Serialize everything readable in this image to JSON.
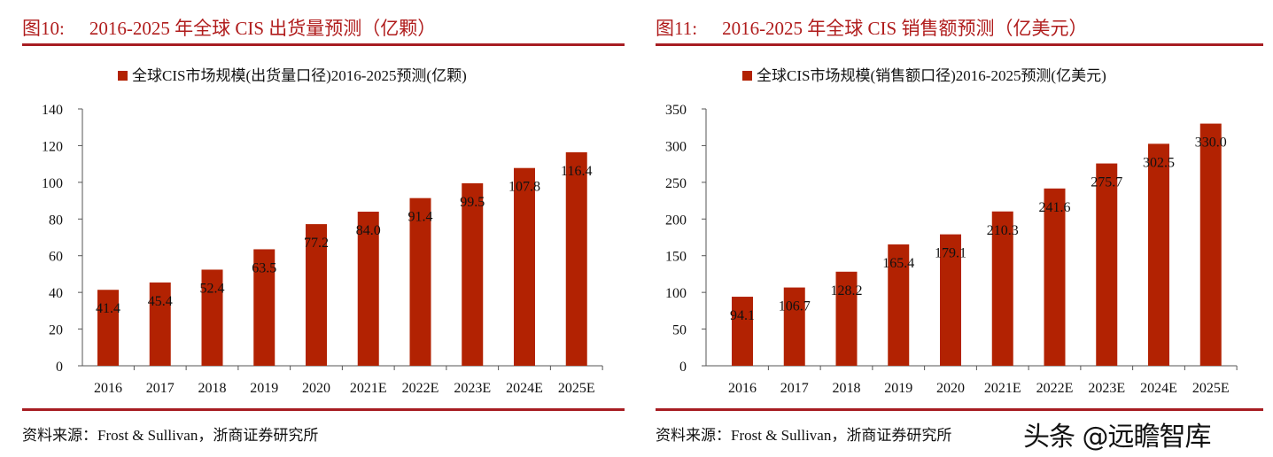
{
  "colors": {
    "bar": "#b22202",
    "title": "#b01c1c",
    "rule": "#a71d22"
  },
  "watermark": "头条 @远瞻智库",
  "chart_data": [
    {
      "type": "bar",
      "figure_number": "图10:",
      "title": "2016-2025 年全球 CIS 出货量预测（亿颗）",
      "legend": "全球CIS市场规模(出货量口径)2016-2025预测(亿颗)",
      "legend_position": "top",
      "categories": [
        "2016",
        "2017",
        "2018",
        "2019",
        "2020",
        "2021E",
        "2022E",
        "2023E",
        "2024E",
        "2025E"
      ],
      "values": [
        41.4,
        45.4,
        52.4,
        63.5,
        77.2,
        84.0,
        91.4,
        99.5,
        107.8,
        116.4
      ],
      "labels": [
        "41.4",
        "45.4",
        "52.4",
        "63.5",
        "77.2",
        "84.0",
        "91.4",
        "99.5",
        "107.8",
        "116.4"
      ],
      "ylim": [
        0,
        140
      ],
      "yticks": [
        0,
        20,
        40,
        60,
        80,
        100,
        120,
        140
      ],
      "grid": false,
      "source": "资料来源：Frost & Sullivan，浙商证券研究所"
    },
    {
      "type": "bar",
      "figure_number": "图11:",
      "title": "2016-2025 年全球 CIS 销售额预测（亿美元）",
      "legend": "全球CIS市场规模(销售额口径)2016-2025预测(亿美元)",
      "legend_position": "top",
      "categories": [
        "2016",
        "2017",
        "2018",
        "2019",
        "2020",
        "2021E",
        "2022E",
        "2023E",
        "2024E",
        "2025E"
      ],
      "values": [
        94.1,
        106.7,
        128.2,
        165.4,
        179.1,
        210.3,
        241.6,
        275.7,
        302.5,
        330.0
      ],
      "labels": [
        "94.1",
        "106.7",
        "128.2",
        "165.4",
        "179.1",
        "210.3",
        "241.6",
        "275.7",
        "302.5",
        "330.0"
      ],
      "ylim": [
        0,
        350
      ],
      "yticks": [
        0,
        50,
        100,
        150,
        200,
        250,
        300,
        350
      ],
      "grid": false,
      "source": "资料来源：Frost & Sullivan，浙商证券研究所"
    }
  ]
}
